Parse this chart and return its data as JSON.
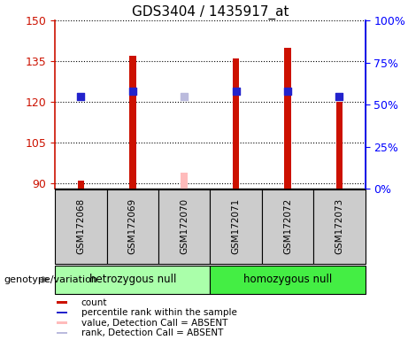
{
  "title": "GDS3404 / 1435917_at",
  "samples": [
    "GSM172068",
    "GSM172069",
    "GSM172070",
    "GSM172071",
    "GSM172072",
    "GSM172073"
  ],
  "groups": [
    "hetrozygous null",
    "homozygous null"
  ],
  "ylim_left": [
    88,
    150
  ],
  "ylim_right": [
    0,
    100
  ],
  "yticks_left": [
    90,
    105,
    120,
    135,
    150
  ],
  "yticks_right": [
    0,
    25,
    50,
    75,
    100
  ],
  "count_values": [
    91,
    137,
    null,
    136,
    140,
    120
  ],
  "rank_values": [
    122,
    124,
    null,
    124,
    124,
    122
  ],
  "absent_count_values": [
    null,
    null,
    94,
    null,
    null,
    null
  ],
  "absent_rank_values": [
    null,
    null,
    122,
    null,
    null,
    null
  ],
  "bar_color": "#cc1100",
  "rank_color": "#2222cc",
  "absent_bar_color": "#ffbbbb",
  "absent_rank_color": "#bbbbdd",
  "bar_width": 0.13,
  "rank_marker_size": 30,
  "group_colors": [
    "#aaffaa",
    "#44ee44"
  ],
  "label_area_color": "#cccccc",
  "genotype_label": "genotype/variation",
  "legend_items": [
    {
      "color": "#cc1100",
      "label": "count"
    },
    {
      "color": "#2222cc",
      "label": "percentile rank within the sample"
    },
    {
      "color": "#ffbbbb",
      "label": "value, Detection Call = ABSENT"
    },
    {
      "color": "#bbbbdd",
      "label": "rank, Detection Call = ABSENT"
    }
  ]
}
